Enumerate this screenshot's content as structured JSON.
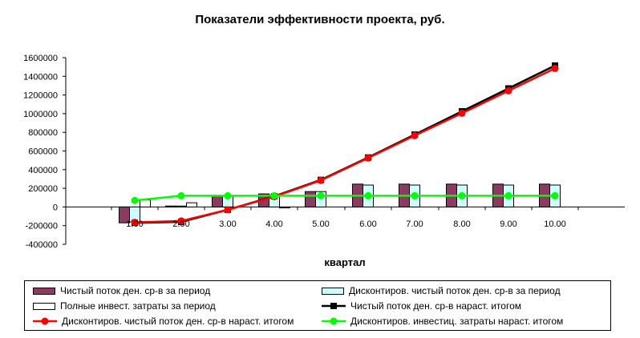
{
  "chart_data": {
    "type": "bar",
    "title": "Показатели эффективности проекта, руб.",
    "xlabel": "квартал",
    "ylabel": "",
    "ylim": [
      -400000,
      1600000
    ],
    "yticks": [
      "1600000",
      "1400000",
      "1200000",
      "1000000",
      "800000",
      "600000",
      "400000",
      "200000",
      "0",
      "-200000",
      "-400000"
    ],
    "categories": [
      "1.00",
      "2.00",
      "3.00",
      "4.00",
      "5.00",
      "6.00",
      "7.00",
      "8.00",
      "9.00",
      "10.00"
    ],
    "series": [
      {
        "name": "Чистый поток ден. ср-в за период",
        "kind": "bar",
        "color": "#8b3a62",
        "values": [
          -170000,
          10000,
          120000,
          140000,
          165000,
          245000,
          245000,
          245000,
          245000,
          245000
        ]
      },
      {
        "name": "Дисконтиров. чистый поток ден. ср-в за период",
        "kind": "bar",
        "color": "#ccffff",
        "values": [
          -160000,
          10000,
          115000,
          130000,
          165000,
          235000,
          235000,
          235000,
          235000,
          235000
        ]
      },
      {
        "name": "Полные инвест. затраты за период",
        "kind": "bar",
        "color": "#ffffff",
        "values": [
          75000,
          45000,
          0,
          -10000,
          0,
          0,
          0,
          0,
          0,
          0
        ]
      },
      {
        "name": "Чистый поток ден. ср-в нараст. итогом",
        "kind": "line",
        "color": "#000000",
        "marker": "square",
        "values": [
          -170000,
          -160000,
          -30000,
          115000,
          290000,
          530000,
          775000,
          1025000,
          1270000,
          1515000
        ]
      },
      {
        "name": "Дисконтиров. чистый поток ден. ср-в нараст. итогом",
        "kind": "line",
        "color": "#ff0000",
        "marker": "circle",
        "values": [
          -165000,
          -150000,
          -30000,
          110000,
          285000,
          525000,
          765000,
          1005000,
          1245000,
          1485000
        ]
      },
      {
        "name": "Дисконтиров. инвестиц. затраты нараст. итогом",
        "kind": "line",
        "color": "#00ff00",
        "marker": "circle",
        "values": [
          70000,
          120000,
          120000,
          120000,
          120000,
          120000,
          120000,
          120000,
          120000,
          120000
        ]
      }
    ],
    "legend_position": "bottom",
    "grid": false
  }
}
